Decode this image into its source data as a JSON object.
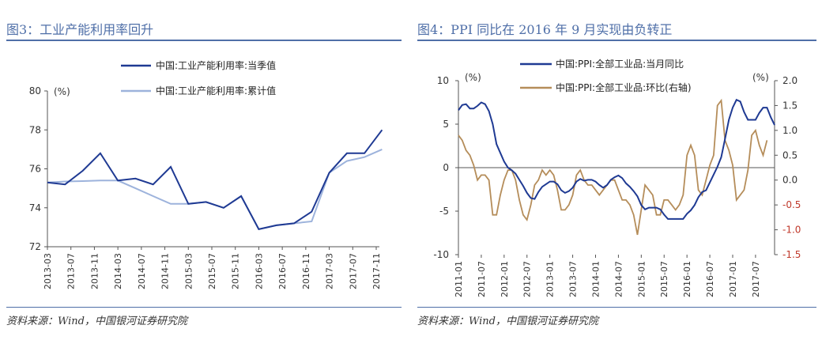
{
  "left": {
    "title": "图3：工业产能利用率回升",
    "source": "资料来源：Wind，中国银河证券研究院"
  },
  "right": {
    "title": "图4：PPI 同比在 2016 年 9 月实现由负转正",
    "source": "资料来源：Wind，中国银河证券研究院"
  },
  "colors": {
    "dark_blue": "#1f3a93",
    "light_blue": "#9db3dc",
    "tan": "#b58d5a",
    "red_axis": "#c0392b",
    "title_blue": "#4f6fa8"
  },
  "chart_data": [
    {
      "type": "line",
      "unit_label": "(%)",
      "ylim": [
        72,
        80
      ],
      "yticks": [
        72,
        74,
        76,
        78,
        80
      ],
      "xtick_labels": [
        "2013-03",
        "2013-07",
        "2013-11",
        "2014-03",
        "2014-07",
        "2014-11",
        "2015-03",
        "2015-07",
        "2015-11",
        "2016-03",
        "2016-07",
        "2016-11",
        "2017-03",
        "2017-07",
        "2017-11"
      ],
      "legend_position": "top",
      "series": [
        {
          "name": "中国:工业产能利用率:当季值",
          "color": "#1f3a93",
          "points": [
            [
              "2013-03",
              75.3
            ],
            [
              "2013-06",
              75.2
            ],
            [
              "2013-09",
              75.9
            ],
            [
              "2013-12",
              76.8
            ],
            [
              "2014-03",
              75.4
            ],
            [
              "2014-06",
              75.5
            ],
            [
              "2014-09",
              75.2
            ],
            [
              "2014-12",
              76.1
            ],
            [
              "2015-03",
              74.2
            ],
            [
              "2015-06",
              74.3
            ],
            [
              "2015-09",
              74.0
            ],
            [
              "2015-12",
              74.6
            ],
            [
              "2016-03",
              72.9
            ],
            [
              "2016-06",
              73.1
            ],
            [
              "2016-09",
              73.2
            ],
            [
              "2016-12",
              73.8
            ],
            [
              "2017-03",
              75.8
            ],
            [
              "2017-06",
              76.8
            ],
            [
              "2017-09",
              76.8
            ],
            [
              "2017-12",
              78.0
            ]
          ]
        },
        {
          "name": "中国:工业产能利用率:累计值",
          "color": "#9db3dc",
          "points": [
            [
              "2013-03",
              75.3
            ],
            [
              "2013-06",
              75.35
            ],
            [
              "2013-09",
              75.37
            ],
            [
              "2013-12",
              75.4
            ],
            [
              "2014-03",
              75.4
            ],
            [
              "2014-06",
              75.0
            ],
            [
              "2014-09",
              74.6
            ],
            [
              "2014-12",
              74.2
            ],
            [
              "2015-03",
              74.2
            ],
            [
              "2015-06",
              74.3
            ],
            [
              "2015-09",
              74.0
            ],
            [
              "2015-12",
              74.6
            ],
            [
              "2016-03",
              72.9
            ],
            [
              "2016-06",
              73.1
            ],
            [
              "2016-09",
              73.2
            ],
            [
              "2016-12",
              73.3
            ],
            [
              "2017-03",
              75.8
            ],
            [
              "2017-06",
              76.4
            ],
            [
              "2017-09",
              76.6
            ],
            [
              "2017-12",
              77.0
            ]
          ]
        }
      ]
    },
    {
      "type": "line",
      "left_unit_label": "(%)",
      "right_unit_label": "(%)",
      "ylim": [
        -10,
        10
      ],
      "yticks": [
        -10,
        -5,
        0,
        5,
        10
      ],
      "y2lim": [
        -1.5,
        2.0
      ],
      "y2ticks": [
        -1.5,
        -1.0,
        -0.5,
        0.0,
        0.5,
        1.0,
        1.5,
        2.0
      ],
      "xtick_labels": [
        "2011-01",
        "2011-07",
        "2012-01",
        "2012-07",
        "2013-01",
        "2013-07",
        "2014-01",
        "2014-07",
        "2015-01",
        "2015-07",
        "2016-01",
        "2016-07",
        "2017-01",
        "2017-07"
      ],
      "legend_position": "top",
      "series": [
        {
          "name": "中国:PPI:全部工业品:当月同比",
          "color": "#1f3a93",
          "axis": "left",
          "points": [
            [
              "2011-01",
              6.6
            ],
            [
              "2011-02",
              7.2
            ],
            [
              "2011-03",
              7.3
            ],
            [
              "2011-04",
              6.8
            ],
            [
              "2011-05",
              6.8
            ],
            [
              "2011-06",
              7.1
            ],
            [
              "2011-07",
              7.5
            ],
            [
              "2011-08",
              7.3
            ],
            [
              "2011-09",
              6.5
            ],
            [
              "2011-10",
              5.0
            ],
            [
              "2011-11",
              2.7
            ],
            [
              "2011-12",
              1.7
            ],
            [
              "2012-01",
              0.7
            ],
            [
              "2012-02",
              0.0
            ],
            [
              "2012-03",
              -0.3
            ],
            [
              "2012-04",
              -0.7
            ],
            [
              "2012-05",
              -1.4
            ],
            [
              "2012-06",
              -2.1
            ],
            [
              "2012-07",
              -2.9
            ],
            [
              "2012-08",
              -3.5
            ],
            [
              "2012-09",
              -3.6
            ],
            [
              "2012-10",
              -2.8
            ],
            [
              "2012-11",
              -2.2
            ],
            [
              "2012-12",
              -1.9
            ],
            [
              "2013-01",
              -1.6
            ],
            [
              "2013-02",
              -1.6
            ],
            [
              "2013-03",
              -1.9
            ],
            [
              "2013-04",
              -2.6
            ],
            [
              "2013-05",
              -2.9
            ],
            [
              "2013-06",
              -2.7
            ],
            [
              "2013-07",
              -2.3
            ],
            [
              "2013-08",
              -1.6
            ],
            [
              "2013-09",
              -1.3
            ],
            [
              "2013-10",
              -1.5
            ],
            [
              "2013-11",
              -1.4
            ],
            [
              "2013-12",
              -1.4
            ],
            [
              "2014-01",
              -1.6
            ],
            [
              "2014-02",
              -2.0
            ],
            [
              "2014-03",
              -2.3
            ],
            [
              "2014-04",
              -2.0
            ],
            [
              "2014-05",
              -1.4
            ],
            [
              "2014-06",
              -1.1
            ],
            [
              "2014-07",
              -0.9
            ],
            [
              "2014-08",
              -1.2
            ],
            [
              "2014-09",
              -1.8
            ],
            [
              "2014-10",
              -2.2
            ],
            [
              "2014-11",
              -2.7
            ],
            [
              "2014-12",
              -3.3
            ],
            [
              "2015-01",
              -4.3
            ],
            [
              "2015-02",
              -4.8
            ],
            [
              "2015-03",
              -4.6
            ],
            [
              "2015-04",
              -4.6
            ],
            [
              "2015-05",
              -4.6
            ],
            [
              "2015-06",
              -4.8
            ],
            [
              "2015-07",
              -5.4
            ],
            [
              "2015-08",
              -5.9
            ],
            [
              "2015-09",
              -5.9
            ],
            [
              "2015-10",
              -5.9
            ],
            [
              "2015-11",
              -5.9
            ],
            [
              "2015-12",
              -5.9
            ],
            [
              "2016-01",
              -5.3
            ],
            [
              "2016-02",
              -4.9
            ],
            [
              "2016-03",
              -4.3
            ],
            [
              "2016-04",
              -3.4
            ],
            [
              "2016-05",
              -2.8
            ],
            [
              "2016-06",
              -2.6
            ],
            [
              "2016-07",
              -1.7
            ],
            [
              "2016-08",
              -0.8
            ],
            [
              "2016-09",
              0.1
            ],
            [
              "2016-10",
              1.2
            ],
            [
              "2016-11",
              3.3
            ],
            [
              "2016-12",
              5.5
            ],
            [
              "2017-01",
              6.9
            ],
            [
              "2017-02",
              7.8
            ],
            [
              "2017-03",
              7.6
            ],
            [
              "2017-04",
              6.4
            ],
            [
              "2017-05",
              5.5
            ],
            [
              "2017-06",
              5.5
            ],
            [
              "2017-07",
              5.5
            ],
            [
              "2017-08",
              6.3
            ],
            [
              "2017-09",
              6.9
            ],
            [
              "2017-10",
              6.9
            ],
            [
              "2017-11",
              5.8
            ],
            [
              "2017-12",
              4.9
            ]
          ]
        },
        {
          "name": "中国:PPI:全部工业品:环比(右轴)",
          "color": "#b58d5a",
          "axis": "right",
          "points": [
            [
              "2011-01",
              0.9
            ],
            [
              "2011-02",
              0.8
            ],
            [
              "2011-03",
              0.6
            ],
            [
              "2011-04",
              0.5
            ],
            [
              "2011-05",
              0.3
            ],
            [
              "2011-06",
              0.0
            ],
            [
              "2011-07",
              0.1
            ],
            [
              "2011-08",
              0.1
            ],
            [
              "2011-09",
              0.0
            ],
            [
              "2011-10",
              -0.7
            ],
            [
              "2011-11",
              -0.7
            ],
            [
              "2011-12",
              -0.3
            ],
            [
              "2012-01",
              0.0
            ],
            [
              "2012-02",
              0.2
            ],
            [
              "2012-03",
              0.2
            ],
            [
              "2012-04",
              0.0
            ],
            [
              "2012-05",
              -0.4
            ],
            [
              "2012-06",
              -0.7
            ],
            [
              "2012-07",
              -0.8
            ],
            [
              "2012-08",
              -0.5
            ],
            [
              "2012-09",
              -0.1
            ],
            [
              "2012-10",
              0.0
            ],
            [
              "2012-11",
              0.2
            ],
            [
              "2012-12",
              0.1
            ],
            [
              "2013-01",
              0.2
            ],
            [
              "2013-02",
              0.1
            ],
            [
              "2013-03",
              -0.2
            ],
            [
              "2013-04",
              -0.6
            ],
            [
              "2013-05",
              -0.6
            ],
            [
              "2013-06",
              -0.5
            ],
            [
              "2013-07",
              -0.3
            ],
            [
              "2013-08",
              0.1
            ],
            [
              "2013-09",
              0.2
            ],
            [
              "2013-10",
              0.0
            ],
            [
              "2013-11",
              -0.1
            ],
            [
              "2013-12",
              -0.1
            ],
            [
              "2014-01",
              -0.2
            ],
            [
              "2014-02",
              -0.3
            ],
            [
              "2014-03",
              -0.2
            ],
            [
              "2014-04",
              -0.1
            ],
            [
              "2014-05",
              0.0
            ],
            [
              "2014-06",
              0.0
            ],
            [
              "2014-07",
              -0.2
            ],
            [
              "2014-08",
              -0.4
            ],
            [
              "2014-09",
              -0.4
            ],
            [
              "2014-10",
              -0.5
            ],
            [
              "2014-11",
              -0.7
            ],
            [
              "2014-12",
              -1.1
            ],
            [
              "2015-01",
              -0.6
            ],
            [
              "2015-02",
              -0.1
            ],
            [
              "2015-03",
              -0.2
            ],
            [
              "2015-04",
              -0.3
            ],
            [
              "2015-05",
              -0.7
            ],
            [
              "2015-06",
              -0.7
            ],
            [
              "2015-07",
              -0.4
            ],
            [
              "2015-08",
              -0.4
            ],
            [
              "2015-09",
              -0.5
            ],
            [
              "2015-10",
              -0.6
            ],
            [
              "2015-11",
              -0.5
            ],
            [
              "2015-12",
              -0.3
            ],
            [
              "2016-01",
              0.5
            ],
            [
              "2016-02",
              0.7
            ],
            [
              "2016-03",
              0.5
            ],
            [
              "2016-04",
              -0.2
            ],
            [
              "2016-05",
              -0.3
            ],
            [
              "2016-06",
              0.0
            ],
            [
              "2016-07",
              0.3
            ],
            [
              "2016-08",
              0.5
            ],
            [
              "2016-09",
              1.5
            ],
            [
              "2016-10",
              1.6
            ],
            [
              "2016-11",
              0.8
            ],
            [
              "2016-12",
              0.6
            ],
            [
              "2017-01",
              0.3
            ],
            [
              "2017-02",
              -0.4
            ],
            [
              "2017-03",
              -0.3
            ],
            [
              "2017-04",
              -0.2
            ],
            [
              "2017-05",
              0.2
            ],
            [
              "2017-06",
              0.9
            ],
            [
              "2017-07",
              1.0
            ],
            [
              "2017-08",
              0.7
            ],
            [
              "2017-09",
              0.5
            ],
            [
              "2017-10",
              0.8
            ]
          ]
        }
      ]
    }
  ]
}
